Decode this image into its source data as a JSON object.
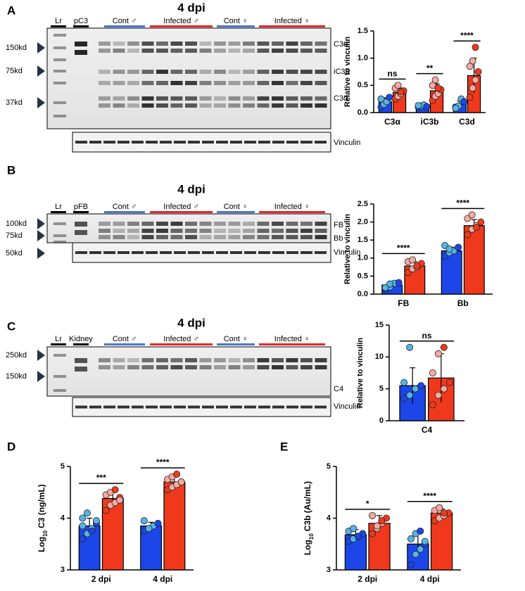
{
  "panel_letters": [
    "A",
    "B",
    "C",
    "D",
    "E"
  ],
  "blots": [
    {
      "title": "4 dpi",
      "lanes": [
        "Lr",
        "pC3"
      ],
      "groups": [
        "Cont ♂",
        "Infected ♂",
        "Cont ♀",
        "Infected ♀"
      ],
      "markers": [
        "150kd",
        "75kd",
        "37kd"
      ],
      "bands": [
        "C3α'",
        "iC3b",
        "C3d"
      ],
      "loading": "Vinculin"
    },
    {
      "title": "4 dpi",
      "lanes": [
        "Lr",
        "pFB"
      ],
      "groups": [
        "Cont ♂",
        "Infected ♂",
        "Cont ♀",
        "Infected ♀"
      ],
      "markers": [
        "100kd",
        "75kd",
        "50kd"
      ],
      "bands": [
        "FB",
        "Bb"
      ],
      "loading": "Vinculin"
    },
    {
      "title": "4 dpi",
      "lanes": [
        "Lr",
        "Kidney"
      ],
      "groups": [
        "Cont ♂",
        "Infected ♂",
        "Cont ♀",
        "Infected ♀"
      ],
      "markers": [
        "250kd",
        "150kd"
      ],
      "bands": [
        "C4"
      ],
      "loading": "Vinculin"
    }
  ],
  "chart_data": [
    {
      "type": "bar",
      "ylabel": {
        "text": "Relative to vinculin"
      },
      "categories": [
        "C3α",
        "iC3b",
        "C3d"
      ],
      "ylim": [
        0,
        1.5
      ],
      "yticks": [
        {
          "value": 0,
          "label": "0.0"
        },
        0.5,
        {
          "value": 1,
          "label": "1.0"
        },
        1.5
      ],
      "significance": [
        "ns",
        "**",
        "****"
      ],
      "series": [
        {
          "color": "#1c46e8",
          "point_color": "#55b4e6",
          "values": [
            0.2,
            0.12,
            0.15
          ],
          "errors": [
            0.07,
            0.03,
            0.06
          ],
          "points": [
            [
              0.1,
              0.15,
              0.2,
              0.28,
              0.25
            ],
            [
              0.1,
              0.12,
              0.14,
              0.11,
              0.13
            ],
            [
              0.1,
              0.12,
              0.25,
              0.2,
              0.08
            ]
          ]
        },
        {
          "color": "#f0391c",
          "point_color": "#f4aaa2",
          "values": [
            0.37,
            0.4,
            0.68
          ],
          "errors": [
            0.08,
            0.13,
            0.32
          ],
          "points": [
            [
              0.25,
              0.3,
              0.35,
              0.4,
              0.45,
              0.5,
              0.38
            ],
            [
              0.22,
              0.3,
              0.35,
              0.42,
              0.5,
              0.6,
              0.45
            ],
            [
              0.28,
              0.45,
              0.6,
              0.75,
              0.85,
              0.95,
              1.2
            ]
          ]
        }
      ]
    },
    {
      "type": "bar",
      "ylabel": {
        "text": "Relative to vinculin"
      },
      "categories": [
        "FB",
        "Bb"
      ],
      "ylim": [
        0,
        2.5
      ],
      "yticks": [
        {
          "value": 0,
          "label": "0.0"
        },
        0.5,
        {
          "value": 1,
          "label": "1.0"
        },
        1.5,
        {
          "value": 2,
          "label": "2.0"
        },
        2.5
      ],
      "significance": [
        "****",
        "****"
      ],
      "series": [
        {
          "color": "#1c46e8",
          "point_color": "#55b4e6",
          "values": [
            0.25,
            1.2
          ],
          "errors": [
            0.08,
            0.1
          ],
          "points": [
            [
              0.15,
              0.2,
              0.3,
              0.32,
              0.18,
              0.28
            ],
            [
              1.05,
              1.15,
              1.2,
              1.3,
              1.35,
              1.25
            ]
          ]
        },
        {
          "color": "#f0391c",
          "point_color": "#f4aaa2",
          "values": [
            0.78,
            1.9
          ],
          "errors": [
            0.12,
            0.17
          ],
          "points": [
            [
              0.6,
              0.7,
              0.75,
              0.85,
              0.9,
              0.95,
              0.78
            ],
            [
              1.65,
              1.8,
              1.9,
              2.0,
              2.1,
              2.2,
              1.85
            ]
          ]
        }
      ]
    },
    {
      "type": "bar",
      "ylabel": {
        "text": "Relative to vinculin"
      },
      "categories": [
        "C4"
      ],
      "ylim": [
        0,
        15
      ],
      "yticks": [
        0,
        5,
        10,
        15
      ],
      "significance": [
        "ns"
      ],
      "series": [
        {
          "color": "#1c46e8",
          "point_color": "#55b4e6",
          "values": [
            5.5
          ],
          "errors": [
            2.8
          ],
          "points": [
            [
              3.5,
              4,
              5,
              5.5,
              6,
              11.5
            ]
          ]
        },
        {
          "color": "#f0391c",
          "point_color": "#f4aaa2",
          "values": [
            6.7
          ],
          "errors": [
            3.8
          ],
          "points": [
            [
              2.5,
              4,
              5,
              6,
              7.5,
              10.5,
              11.5
            ]
          ]
        }
      ]
    },
    {
      "type": "bar",
      "ylabel": {
        "base": "Log",
        "sub": "10",
        "rest": "C3 (ng/mL)"
      },
      "categories": [
        "2 dpi",
        "4 dpi"
      ],
      "ylim": [
        3,
        5
      ],
      "yticks": [
        3,
        4,
        5
      ],
      "significance": [
        "***",
        "****"
      ],
      "series": [
        {
          "color": "#1c46e8",
          "point_color": "#55b4e6",
          "values": [
            3.85,
            3.85
          ],
          "errors": [
            0.15,
            0.07
          ],
          "points": [
            [
              3.6,
              3.7,
              3.8,
              3.9,
              4.0,
              4.1,
              3.75,
              3.95,
              3.85
            ],
            [
              3.75,
              3.8,
              3.85,
              3.9,
              3.95,
              3.8
            ]
          ]
        },
        {
          "color": "#f0391c",
          "point_color": "#f4aaa2",
          "values": [
            4.38,
            4.7
          ],
          "errors": [
            0.12,
            0.1
          ],
          "points": [
            [
              4.15,
              4.25,
              4.3,
              4.4,
              4.45,
              4.5,
              4.55,
              4.35
            ],
            [
              4.55,
              4.6,
              4.65,
              4.7,
              4.75,
              4.8,
              4.85,
              4.7
            ]
          ]
        }
      ]
    },
    {
      "type": "bar",
      "ylabel": {
        "base": "Log",
        "sub": "10",
        "rest": "C3b (Au/mL)"
      },
      "categories": [
        "2 dpi",
        "4 dpi"
      ],
      "ylim": [
        3,
        5
      ],
      "yticks": [
        3,
        4,
        5
      ],
      "significance": [
        "*",
        "****"
      ],
      "series": [
        {
          "color": "#1c46e8",
          "point_color": "#55b4e6",
          "values": [
            3.68,
            3.5
          ],
          "errors": [
            0.1,
            0.2
          ],
          "points": [
            [
              3.55,
              3.6,
              3.65,
              3.7,
              3.75,
              3.8,
              3.65
            ],
            [
              3.1,
              3.3,
              3.4,
              3.5,
              3.6,
              3.7,
              3.75,
              3.55
            ]
          ]
        },
        {
          "color": "#f0391c",
          "point_color": "#f4aaa2",
          "values": [
            3.9,
            4.1
          ],
          "errors": [
            0.15,
            0.08
          ],
          "points": [
            [
              3.7,
              3.8,
              3.9,
              4.0,
              4.05,
              3.85,
              3.95
            ],
            [
              3.95,
              4.0,
              4.05,
              4.1,
              4.15,
              4.2,
              4.1
            ]
          ]
        }
      ]
    }
  ]
}
